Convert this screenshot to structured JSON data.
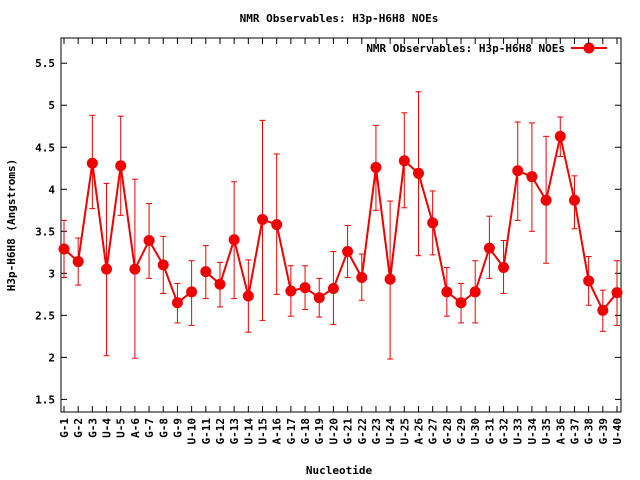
{
  "chart_data": {
    "type": "line",
    "title": "NMR Observables: H3p-H6H8 NOEs",
    "xlabel": "Nucleotide",
    "ylabel": "H3p-H6H8 (Angstroms)",
    "ylim": [
      1.35,
      5.8
    ],
    "yticks": [
      1.5,
      2,
      2.5,
      3,
      3.5,
      4,
      4.5,
      5,
      5.5
    ],
    "ytick_labels": [
      "1.5",
      "2",
      "2.5",
      "3",
      "3.5",
      "4",
      "4.5",
      "5",
      "5.5"
    ],
    "grid": false,
    "legend": {
      "position": "top-right",
      "entries": [
        "NMR Observables: H3p-H6H8 NOEs"
      ]
    },
    "color": "#ee0000",
    "categories": [
      "G-1",
      "G-2",
      "G-3",
      "U-4",
      "U-5",
      "A-6",
      "G-7",
      "G-8",
      "G-9",
      "U-10",
      "G-11",
      "G-12",
      "G-13",
      "U-14",
      "U-15",
      "A-16",
      "G-17",
      "G-18",
      "G-19",
      "U-20",
      "G-21",
      "G-22",
      "G-23",
      "U-24",
      "U-25",
      "A-26",
      "G-27",
      "G-28",
      "G-29",
      "U-30",
      "G-31",
      "G-32",
      "U-33",
      "U-34",
      "U-35",
      "A-36",
      "G-37",
      "G-38",
      "G-39",
      "U-40"
    ],
    "segments": [
      [
        0,
        9
      ],
      [
        10,
        39
      ]
    ],
    "series": [
      {
        "name": "NMR Observables: H3p-H6H8 NOEs",
        "values": [
          3.29,
          3.14,
          4.31,
          3.05,
          4.28,
          3.05,
          3.39,
          3.1,
          2.65,
          2.78,
          3.02,
          2.87,
          3.4,
          2.73,
          3.64,
          3.58,
          2.79,
          2.83,
          2.71,
          2.82,
          3.26,
          2.95,
          4.26,
          2.93,
          4.34,
          4.19,
          3.6,
          2.78,
          2.65,
          2.78,
          3.3,
          3.07,
          4.22,
          4.15,
          3.87,
          4.63,
          3.87,
          2.91,
          2.56,
          2.77
        ],
        "err_low": [
          2.95,
          2.86,
          3.77,
          2.02,
          3.69,
          1.99,
          2.94,
          2.76,
          2.41,
          2.38,
          2.7,
          2.6,
          2.7,
          2.3,
          2.44,
          2.75,
          2.49,
          2.57,
          2.48,
          2.39,
          2.95,
          2.68,
          3.75,
          1.98,
          3.78,
          3.21,
          3.22,
          2.49,
          2.41,
          2.41,
          2.94,
          2.76,
          3.63,
          3.5,
          3.12,
          4.39,
          3.53,
          2.62,
          2.31,
          2.38
        ],
        "err_high": [
          3.63,
          3.42,
          4.88,
          4.07,
          4.87,
          4.12,
          3.83,
          3.44,
          2.88,
          3.15,
          3.33,
          3.13,
          4.09,
          3.16,
          4.82,
          4.42,
          3.09,
          3.09,
          2.94,
          3.26,
          3.57,
          3.23,
          4.76,
          3.86,
          4.91,
          5.16,
          3.98,
          3.07,
          2.88,
          3.15,
          3.68,
          3.39,
          4.8,
          4.79,
          4.63,
          4.86,
          4.16,
          3.2,
          2.8,
          3.15
        ]
      }
    ]
  }
}
